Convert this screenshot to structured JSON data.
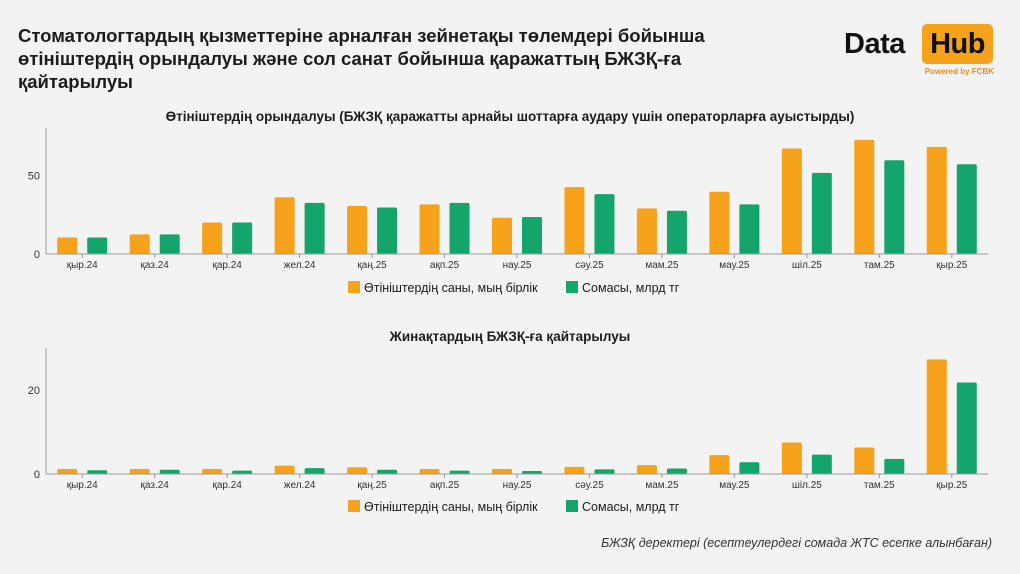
{
  "header": {
    "title": "Стоматологтардың қызметтеріне арналған зейнетақы төлемдері бойынша өтініштердің орындалуы және сол санат бойынша қаражаттың БЖЗҚ-ға қайтарылуы"
  },
  "logo": {
    "word1": "Data",
    "word2": "Hub",
    "tagline": "Powered by FCBK",
    "accent_color": "#f7a21b"
  },
  "footer": {
    "source": "БЖЗҚ деректері (есептеулердегі сомада ЖТС есепке алынбаған)"
  },
  "colors": {
    "series1": "#f7a21b",
    "series2": "#13a56b",
    "axis": "#9a9a9a"
  },
  "chart_data": [
    {
      "type": "bar",
      "title": "Өтініштердің орындалуы (БЖЗҚ қаражатты арнайы шоттарға аудару үшін операторларға ауыстырды)",
      "categories": [
        "қыр.24",
        "қаз.24",
        "қар.24",
        "жел.24",
        "қаң.25",
        "ақп.25",
        "нау.25",
        "сәу.25",
        "мам.25",
        "мау.25",
        "шіл.25",
        "там.25",
        "қыр.25"
      ],
      "series": [
        {
          "name": "Өтініштердің саны, мың бірлік",
          "values": [
            10.5,
            12.5,
            20,
            36,
            30.5,
            31.5,
            23,
            42.5,
            29,
            39.5,
            67,
            72.5,
            68
          ]
        },
        {
          "name": "Сомасы, млрд тг",
          "values": [
            10.5,
            12.5,
            20,
            32.5,
            29.5,
            32.5,
            23.5,
            38,
            27.5,
            31.5,
            51.5,
            59.5,
            57
          ]
        }
      ],
      "yticks": [
        0,
        50
      ],
      "ylim": [
        0,
        80
      ],
      "legend": "bottom"
    },
    {
      "type": "bar",
      "title": "Жинақтардың БЖЗҚ-ға қайтарылуы",
      "categories": [
        "қыр.24",
        "қаз.24",
        "қар.24",
        "жел.24",
        "қаң.25",
        "ақп.25",
        "нау.25",
        "сәу.25",
        "мам.25",
        "мау.25",
        "шіл.25",
        "там.25",
        "қыр.25"
      ],
      "series": [
        {
          "name": "Өтініштердің саны, мың бірлік",
          "values": [
            1.2,
            1.2,
            1.2,
            2,
            1.6,
            1.2,
            1.2,
            1.7,
            2.1,
            4.5,
            7.5,
            6.3,
            27.3
          ]
        },
        {
          "name": "Сомасы, млрд тг",
          "values": [
            0.9,
            1,
            0.8,
            1.4,
            1,
            0.8,
            0.7,
            1.1,
            1.3,
            2.8,
            4.6,
            3.6,
            21.8
          ]
        }
      ],
      "yticks": [
        0,
        20
      ],
      "ylim": [
        0,
        30
      ],
      "legend": "bottom"
    }
  ]
}
